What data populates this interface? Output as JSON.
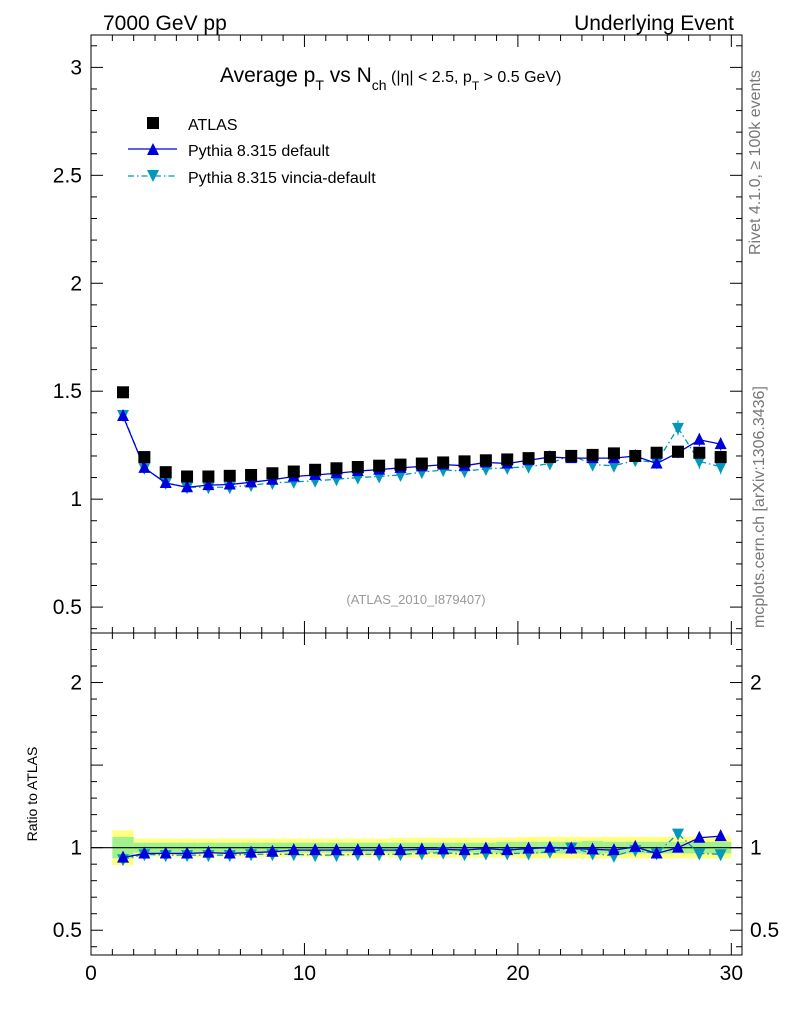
{
  "header": {
    "left": "7000 GeV pp",
    "right": "Underlying Event"
  },
  "title": {
    "main": "Average p",
    "main_sub": "T",
    "vs": " vs N",
    "vs_sub": "ch",
    "cut_a": " (|η| < 2.5, p",
    "cut_sub": "T",
    "cut_b": " > 0.5 GeV)"
  },
  "side_labels": {
    "rivet": "Rivet 4.1.0, ≥ 100k events",
    "mcplots": "mcplots.cern.ch [arXiv:1306.3436]"
  },
  "watermark": "(ATLAS_2010_I879407)",
  "legend": [
    {
      "label": "ATLAS",
      "color": "#000000",
      "marker": "square"
    },
    {
      "label": "Pythia 8.315 default",
      "color": "#0000dd",
      "marker": "triangle-up"
    },
    {
      "label": "Pythia 8.315 vincia-default",
      "color": "#0099bb",
      "marker": "triangle-down"
    }
  ],
  "chart_data": {
    "type": "scatter",
    "xlim": [
      0,
      30.5
    ],
    "xticks": [
      "0",
      "10",
      "20",
      "30"
    ],
    "main_panel": {
      "ylim": [
        0.38,
        3.15
      ],
      "yticks": [
        "0.5",
        "1",
        "1.5",
        "2",
        "2.5",
        "3"
      ]
    },
    "ratio_panel": {
      "ylabel": "Ratio to ATLAS",
      "ylim": [
        0.35,
        2.3
      ],
      "yticks": [
        "0.5",
        "1",
        "2"
      ]
    },
    "x": [
      1.5,
      2.5,
      3.5,
      4.5,
      5.5,
      6.5,
      7.5,
      8.5,
      9.5,
      10.5,
      11.5,
      12.5,
      13.5,
      14.5,
      15.5,
      16.5,
      17.5,
      18.5,
      19.5,
      20.5,
      21.5,
      22.5,
      23.5,
      24.5,
      25.5,
      26.5,
      27.5,
      28.5,
      29.5
    ],
    "series": [
      {
        "name": "ATLAS",
        "values": [
          1.495,
          1.195,
          1.125,
          1.105,
          1.105,
          1.108,
          1.112,
          1.12,
          1.128,
          1.136,
          1.143,
          1.149,
          1.155,
          1.16,
          1.165,
          1.17,
          1.175,
          1.18,
          1.184,
          1.19,
          1.195,
          1.2,
          1.205,
          1.212,
          1.2,
          1.215,
          1.22,
          1.215,
          1.195
        ]
      },
      {
        "name": "Pythia 8.315 default",
        "values": [
          1.385,
          1.145,
          1.075,
          1.055,
          1.065,
          1.068,
          1.078,
          1.09,
          1.105,
          1.112,
          1.12,
          1.13,
          1.137,
          1.145,
          1.152,
          1.16,
          1.155,
          1.17,
          1.165,
          1.18,
          1.195,
          1.19,
          1.19,
          1.19,
          1.2,
          1.165,
          1.215,
          1.275,
          1.255
        ],
        "errors": [
          0.004,
          0.004,
          0.004,
          0.004,
          0.004,
          0.004,
          0.004,
          0.004,
          0.004,
          0.004,
          0.004,
          0.004,
          0.005,
          0.005,
          0.005,
          0.005,
          0.006,
          0.006,
          0.007,
          0.008,
          0.009,
          0.01,
          0.012,
          0.014,
          0.016,
          0.02,
          0.025,
          0.03,
          0.03
        ]
      },
      {
        "name": "Pythia 8.315 vincia-default",
        "values": [
          1.39,
          1.145,
          1.075,
          1.055,
          1.055,
          1.055,
          1.065,
          1.075,
          1.08,
          1.085,
          1.092,
          1.1,
          1.105,
          1.112,
          1.125,
          1.135,
          1.13,
          1.14,
          1.145,
          1.15,
          1.165,
          1.205,
          1.16,
          1.155,
          1.18,
          1.17,
          1.33,
          1.175,
          1.15
        ],
        "errors": [
          0.004,
          0.004,
          0.004,
          0.004,
          0.004,
          0.004,
          0.004,
          0.004,
          0.004,
          0.004,
          0.004,
          0.004,
          0.005,
          0.005,
          0.005,
          0.006,
          0.007,
          0.008,
          0.009,
          0.01,
          0.012,
          0.015,
          0.02,
          0.02,
          0.02,
          0.025,
          0.035,
          0.035,
          0.035
        ]
      }
    ],
    "ratio_series": [
      {
        "name": "Pythia 8.315 default",
        "values": [
          0.94,
          0.965,
          0.965,
          0.965,
          0.97,
          0.965,
          0.97,
          0.975,
          0.985,
          0.985,
          0.985,
          0.985,
          0.985,
          0.985,
          0.99,
          0.99,
          0.985,
          0.995,
          0.985,
          0.995,
          1.0,
          0.995,
          0.99,
          0.985,
          1.005,
          0.965,
          1.0,
          1.06,
          1.07
        ]
      },
      {
        "name": "Pythia 8.315 vincia-default",
        "values": [
          0.93,
          0.96,
          0.955,
          0.955,
          0.955,
          0.955,
          0.96,
          0.96,
          0.96,
          0.955,
          0.955,
          0.96,
          0.96,
          0.96,
          0.965,
          0.97,
          0.96,
          0.965,
          0.965,
          0.965,
          0.975,
          1.0,
          0.965,
          0.95,
          0.985,
          0.965,
          1.085,
          0.965,
          0.96
        ]
      }
    ],
    "band_halfwidths": {
      "stat": [
        0.065,
        0.03,
        0.03,
        0.03,
        0.03,
        0.03,
        0.03,
        0.03,
        0.03,
        0.03,
        0.03,
        0.03,
        0.03,
        0.03,
        0.03,
        0.03,
        0.03,
        0.03,
        0.035,
        0.035,
        0.035,
        0.035,
        0.04,
        0.035,
        0.035,
        0.035,
        0.035,
        0.035,
        0.035
      ],
      "total": [
        0.105,
        0.055,
        0.055,
        0.055,
        0.055,
        0.055,
        0.055,
        0.055,
        0.055,
        0.055,
        0.055,
        0.055,
        0.055,
        0.06,
        0.06,
        0.06,
        0.06,
        0.06,
        0.06,
        0.065,
        0.065,
        0.065,
        0.065,
        0.065,
        0.065,
        0.065,
        0.065,
        0.065,
        0.065
      ]
    }
  }
}
